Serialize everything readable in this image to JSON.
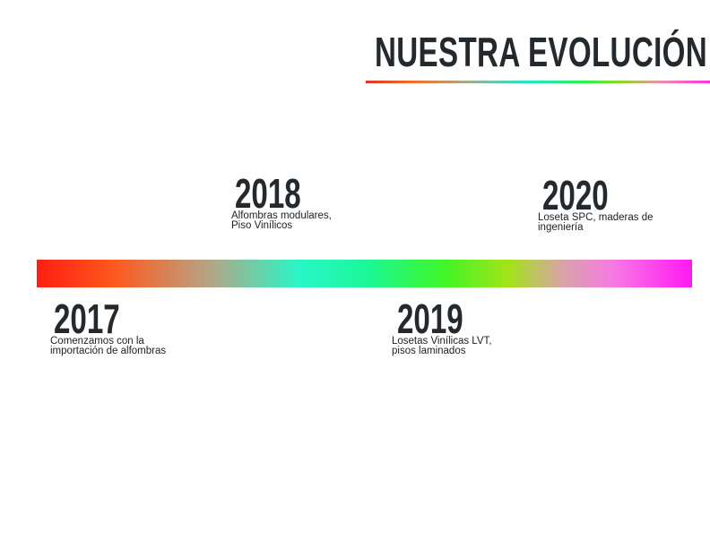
{
  "title": "NUESTRA EVOLUCIÓN",
  "colors": {
    "text": "#23292c",
    "gradient_start": "#ff1f12",
    "gradient_mid_cyan": "#2af6c8",
    "gradient_mid_green": "#3ef628",
    "gradient_end": "#ff19f4"
  },
  "milestones": [
    {
      "year": "2017",
      "description": "Comenzamos con la\nimportación de alfombras",
      "position": "below"
    },
    {
      "year": "2018",
      "description": "Alfombras modulares,\nPiso Vinílicos",
      "position": "above"
    },
    {
      "year": "2019",
      "description": "Losetas Vinílicas LVT,\npisos laminados",
      "position": "below"
    },
    {
      "year": "2020",
      "description": "Loseta SPC, maderas de\ningeniería",
      "position": "above"
    }
  ]
}
